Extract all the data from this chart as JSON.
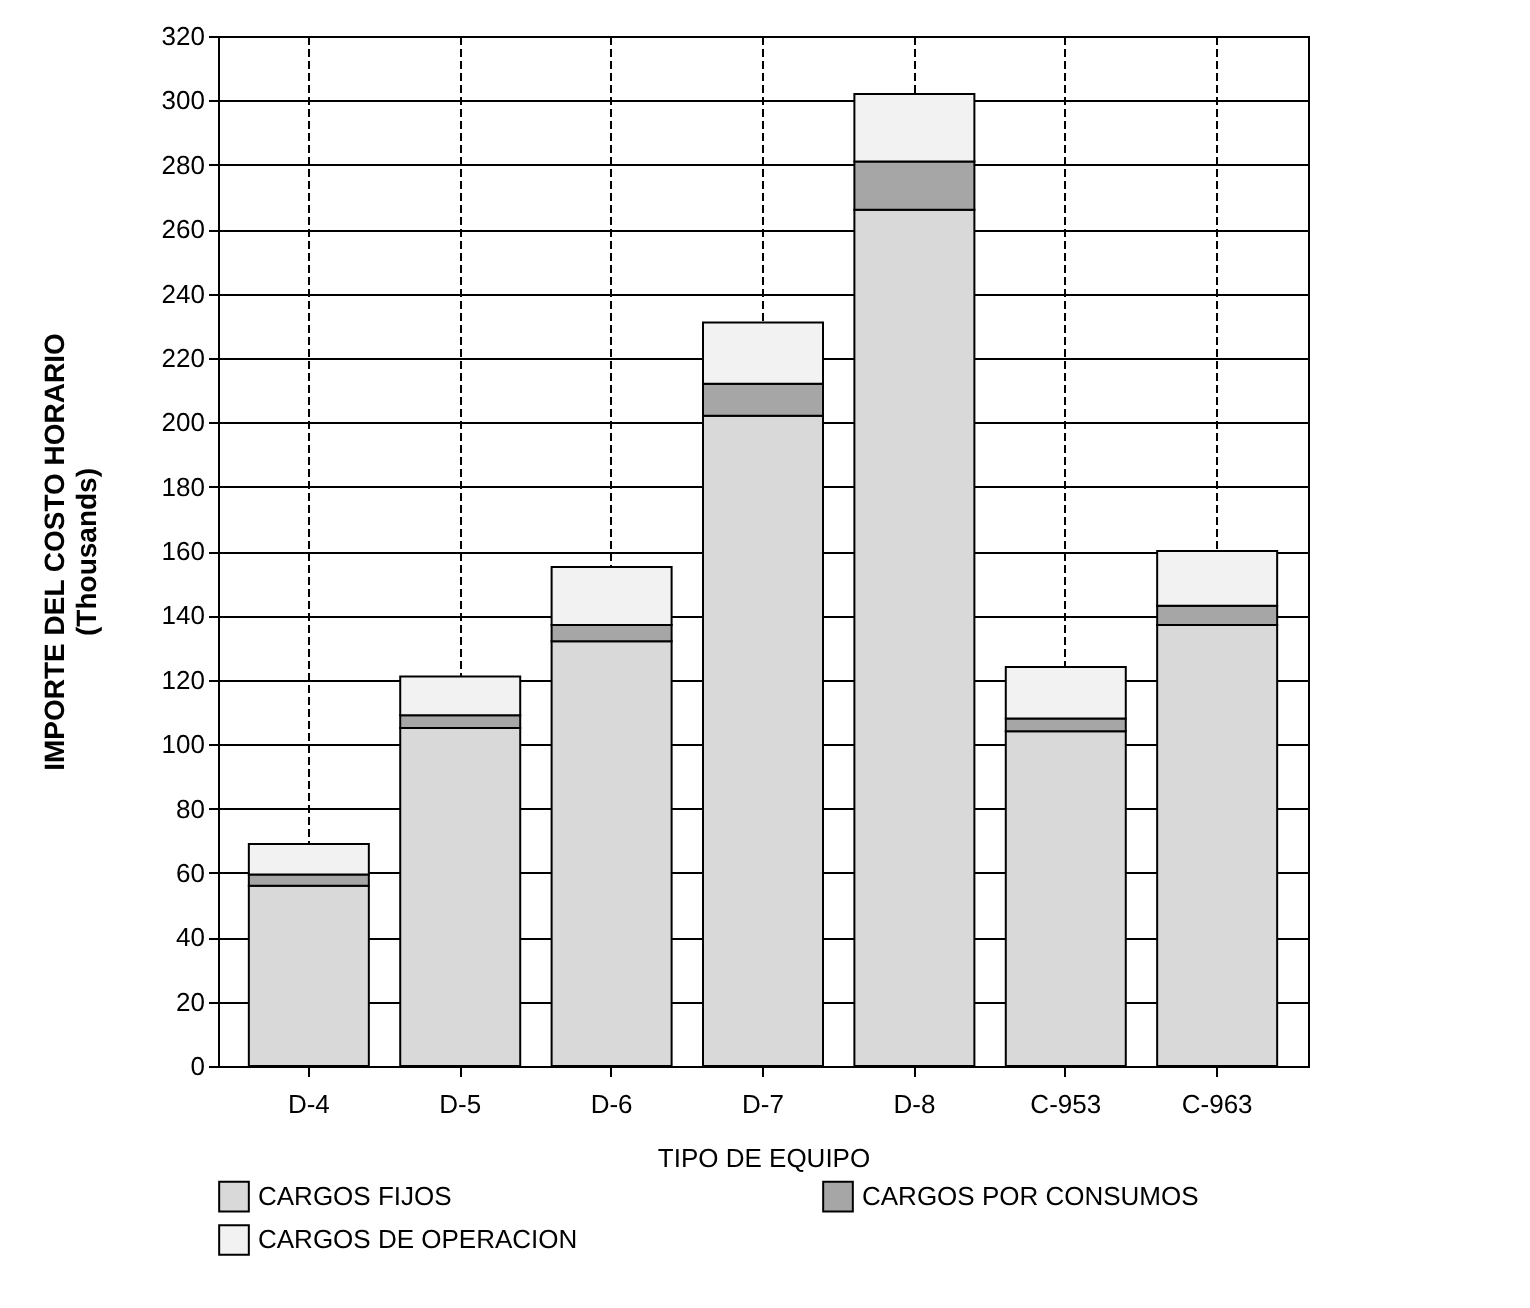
{
  "chart_data": {
    "type": "bar",
    "stacked": true,
    "xlabel": "TIPO DE EQUIPO",
    "ylabel": "IMPORTE DEL COSTO HORARIO\n(Thousands)",
    "categories": [
      "D-4",
      "D-5",
      "D-6",
      "D-7",
      "D-8",
      "C-953",
      "C-963"
    ],
    "series": [
      {
        "name": "CARGOS FIJOS",
        "color": "#d9d9d9",
        "values": [
          56,
          105,
          132,
          202,
          266,
          104,
          137
        ]
      },
      {
        "name": "CARGOS POR CONSUMOS",
        "color": "#a6a6a6",
        "values": [
          3.5,
          4,
          5,
          10,
          15,
          4,
          6
        ]
      },
      {
        "name": "CARGOS DE OPERACION",
        "color": "#f2f2f2",
        "values": [
          9.5,
          12,
          18,
          19,
          21,
          16,
          17
        ]
      }
    ],
    "ylim": [
      0,
      320
    ],
    "yticks": [
      0,
      20,
      40,
      60,
      80,
      100,
      120,
      140,
      160,
      180,
      200,
      220,
      240,
      260,
      280,
      300,
      320
    ],
    "grid": true,
    "legend": "bottom"
  }
}
